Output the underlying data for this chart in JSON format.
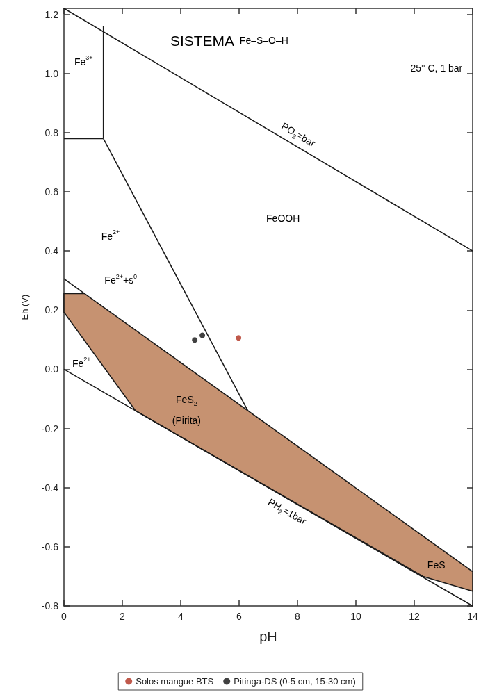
{
  "chart_data": {
    "type": "line",
    "title": "SISTEMA",
    "subtitle": "Fe–S–O–H",
    "xlabel": "pH",
    "ylabel": "Eh (V)",
    "xlim": [
      0,
      14
    ],
    "xticks": [
      0,
      2,
      4,
      6,
      8,
      10,
      12,
      14
    ],
    "ylim": [
      -0.8,
      1.22
    ],
    "yticks": [
      -0.8,
      -0.6,
      -0.4,
      -0.2,
      {
        "value": 0,
        "label": "0.0"
      },
      0.2,
      0.4,
      0.6,
      0.8,
      {
        "value": 1,
        "label": "1.0"
      },
      1.2
    ],
    "grid": false,
    "legend": "bottom",
    "marker": "circle",
    "series": [
      {
        "type": "area",
        "color": "#c69271",
        "marker": "none",
        "x": [
          0,
          0.7,
          14,
          14,
          12.3,
          2.45,
          0
        ],
        "values": [
          0.256,
          0.256,
          -0.684,
          -0.75,
          -0.7,
          -0.14,
          0.193
        ]
      },
      {
        "name": "PO$_{2}$=bar",
        "color": "#1a1a1a",
        "marker": "none",
        "x": [
          0,
          14
        ],
        "values": [
          1.22,
          0.4
        ]
      },
      {
        "name": "PH$_{2}$=1bar",
        "color": "#1a1a1a",
        "marker": "none",
        "x": [
          0,
          14
        ],
        "values": [
          0,
          -0.8
        ]
      },
      {
        "color": "#1a1a1a",
        "marker": "none",
        "x": [
          0,
          1.35
        ],
        "values": [
          0.78,
          0.78
        ]
      },
      {
        "color": "#1a1a1a",
        "marker": "none",
        "x": [
          1.35,
          1.35
        ],
        "values": [
          0.78,
          1.16
        ]
      },
      {
        "color": "#1a1a1a",
        "marker": "none",
        "x": [
          1.35,
          6.3
        ],
        "values": [
          0.78,
          -0.14
        ]
      },
      {
        "color": "#1a1a1a",
        "marker": "none",
        "x": [
          0,
          0.7
        ],
        "values": [
          0.306,
          0.256
        ]
      },
      {
        "type": "scatter",
        "name": "Solos mangue BTS",
        "color": "#b0301e",
        "x": [
          5.98
        ],
        "values": [
          0.106
        ]
      },
      {
        "type": "scatter",
        "name": "Pitinga-DS (0-5 cm, 15-30 cm)",
        "color": "#111111",
        "x": [
          4.48,
          4.74
        ],
        "values": [
          0.099,
          0.115
        ]
      }
    ],
    "annotations": [
      "25° C, 1 bar",
      "Fe$^{3+}$",
      "Fe$^{2+}$",
      "FeOOH",
      "Fe$^{2+}$+s$^{0}$",
      "Fe$^{2+}$",
      "FeS$_{2}$",
      "(Pirita)",
      "FeS"
    ]
  }
}
